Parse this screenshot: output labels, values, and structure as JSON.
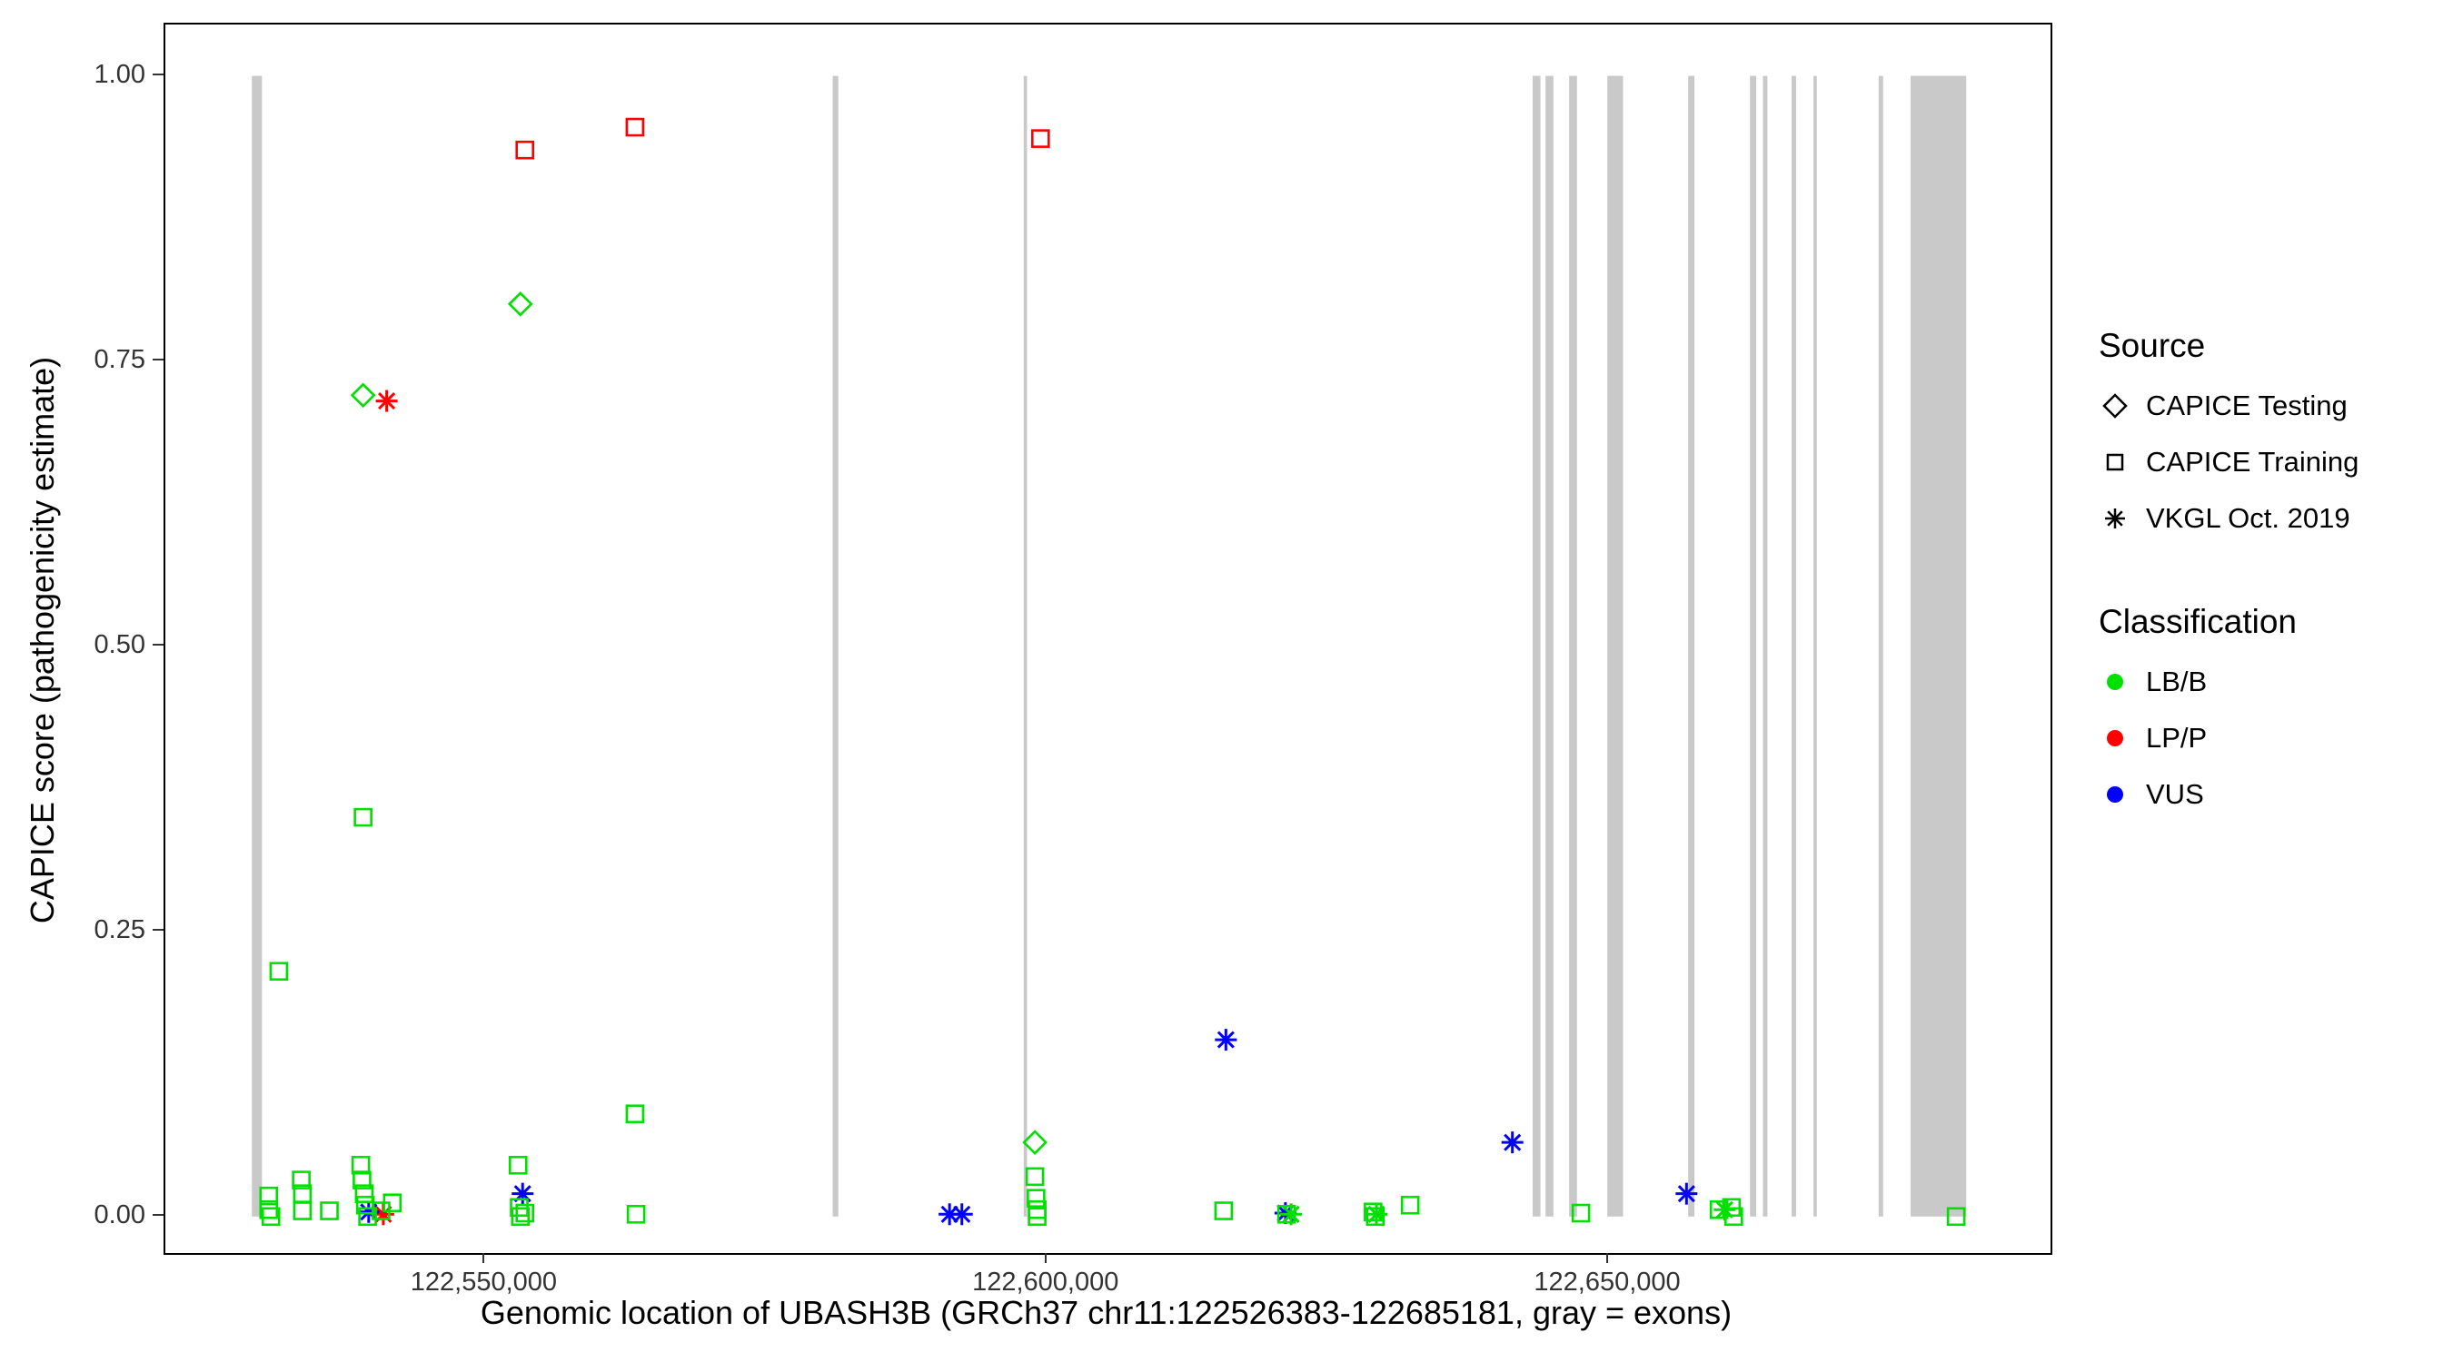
{
  "legend": {
    "source": {
      "title": "Source",
      "items": [
        {
          "label": "CAPICE Testing",
          "shape": "diamond"
        },
        {
          "label": "CAPICE Training",
          "shape": "square"
        },
        {
          "label": "VKGL Oct. 2019",
          "shape": "asterisk"
        }
      ]
    },
    "classification": {
      "title": "Classification",
      "items": [
        {
          "label": "LB/B",
          "color": "#00e000"
        },
        {
          "label": "LP/P",
          "color": "#ff0000"
        },
        {
          "label": "VUS",
          "color": "#0000ff"
        }
      ]
    }
  },
  "chart_data": {
    "type": "scatter",
    "title": "",
    "xlabel": "Genomic location of UBASH3B (GRCh37 chr11:122526383-122685181, gray = exons)",
    "ylabel": "CAPICE score (pathogenicity estimate)",
    "xlim": [
      122521500,
      122689300
    ],
    "ylim": [
      -0.032,
      1.045
    ],
    "grid": false,
    "legend_position": "right",
    "x_ticks": [
      {
        "value": 122550000,
        "label": "122,550,000"
      },
      {
        "value": 122600000,
        "label": "122,600,000"
      },
      {
        "value": 122650000,
        "label": "122,650,000"
      }
    ],
    "y_ticks": [
      {
        "value": 0.0,
        "label": "0.00"
      },
      {
        "value": 0.25,
        "label": "0.25"
      },
      {
        "value": 0.5,
        "label": "0.50"
      },
      {
        "value": 0.75,
        "label": "0.75"
      },
      {
        "value": 1.0,
        "label": "1.00"
      }
    ],
    "exon_color": "#c9c9c9",
    "exons": [
      [
        122529200,
        122530100
      ],
      [
        122580900,
        122581400
      ],
      [
        122597900,
        122598200
      ],
      [
        122643200,
        122643900
      ],
      [
        122644350,
        122645050
      ],
      [
        122646450,
        122647150
      ],
      [
        122649850,
        122651250
      ],
      [
        122657050,
        122657600
      ],
      [
        122662550,
        122663100
      ],
      [
        122663700,
        122664100
      ],
      [
        122666250,
        122666650
      ],
      [
        122668200,
        122668500
      ],
      [
        122674000,
        122674400
      ],
      [
        122676850,
        122681800
      ]
    ],
    "classification_colors": {
      "LB/B": "#00e000",
      "LP/P": "#ff0000",
      "VUS": "#0000ff"
    },
    "source_shapes": {
      "CAPICE Testing": "diamond",
      "CAPICE Training": "square",
      "VKGL Oct. 2019": "asterisk"
    },
    "points": [
      {
        "x": 122553500,
        "y": 0.935,
        "source": "CAPICE Training",
        "classification": "LP/P"
      },
      {
        "x": 122563300,
        "y": 0.955,
        "source": "CAPICE Training",
        "classification": "LP/P"
      },
      {
        "x": 122599400,
        "y": 0.945,
        "source": "CAPICE Training",
        "classification": "LP/P"
      },
      {
        "x": 122539100,
        "y": 0.72,
        "source": "CAPICE Testing",
        "classification": "LB/B"
      },
      {
        "x": 122553100,
        "y": 0.8,
        "source": "CAPICE Testing",
        "classification": "LB/B"
      },
      {
        "x": 122598900,
        "y": 0.065,
        "source": "CAPICE Testing",
        "classification": "LB/B"
      },
      {
        "x": 122541200,
        "y": 0.715,
        "source": "VKGL Oct. 2019",
        "classification": "LP/P"
      },
      {
        "x": 122540900,
        "y": 0.002,
        "source": "VKGL Oct. 2019",
        "classification": "LP/P"
      },
      {
        "x": 122539600,
        "y": 0.004,
        "source": "VKGL Oct. 2019",
        "classification": "VUS"
      },
      {
        "x": 122553300,
        "y": 0.02,
        "source": "VKGL Oct. 2019",
        "classification": "VUS"
      },
      {
        "x": 122591300,
        "y": 0.002,
        "source": "VKGL Oct. 2019",
        "classification": "VUS"
      },
      {
        "x": 122592400,
        "y": 0.002,
        "source": "VKGL Oct. 2019",
        "classification": "VUS"
      },
      {
        "x": 122615900,
        "y": 0.155,
        "source": "VKGL Oct. 2019",
        "classification": "VUS"
      },
      {
        "x": 122621200,
        "y": 0.003,
        "source": "VKGL Oct. 2019",
        "classification": "VUS"
      },
      {
        "x": 122641400,
        "y": 0.065,
        "source": "VKGL Oct. 2019",
        "classification": "VUS"
      },
      {
        "x": 122656900,
        "y": 0.02,
        "source": "VKGL Oct. 2019",
        "classification": "VUS"
      },
      {
        "x": 122621700,
        "y": 0.002,
        "source": "VKGL Oct. 2019",
        "classification": "LB/B"
      },
      {
        "x": 122629300,
        "y": 0.002,
        "source": "VKGL Oct. 2019",
        "classification": "LB/B"
      },
      {
        "x": 122660300,
        "y": 0.006,
        "source": "VKGL Oct. 2019",
        "classification": "LB/B"
      },
      {
        "x": 122531600,
        "y": 0.215,
        "source": "CAPICE Training",
        "classification": "LB/B"
      },
      {
        "x": 122539100,
        "y": 0.35,
        "source": "CAPICE Training",
        "classification": "LB/B"
      },
      {
        "x": 122530700,
        "y": 0.018,
        "source": "CAPICE Training",
        "classification": "LB/B"
      },
      {
        "x": 122530700,
        "y": 0.006,
        "source": "CAPICE Training",
        "classification": "LB/B"
      },
      {
        "x": 122530900,
        "y": 0.0,
        "source": "CAPICE Training",
        "classification": "LB/B"
      },
      {
        "x": 122533600,
        "y": 0.032,
        "source": "CAPICE Training",
        "classification": "LB/B"
      },
      {
        "x": 122533700,
        "y": 0.02,
        "source": "CAPICE Training",
        "classification": "LB/B"
      },
      {
        "x": 122533700,
        "y": 0.005,
        "source": "CAPICE Training",
        "classification": "LB/B"
      },
      {
        "x": 122536100,
        "y": 0.005,
        "source": "CAPICE Training",
        "classification": "LB/B"
      },
      {
        "x": 122538900,
        "y": 0.045,
        "source": "CAPICE Training",
        "classification": "LB/B"
      },
      {
        "x": 122539000,
        "y": 0.032,
        "source": "CAPICE Training",
        "classification": "LB/B"
      },
      {
        "x": 122539200,
        "y": 0.02,
        "source": "CAPICE Training",
        "classification": "LB/B"
      },
      {
        "x": 122539300,
        "y": 0.01,
        "source": "CAPICE Training",
        "classification": "LB/B"
      },
      {
        "x": 122539500,
        "y": 0.0,
        "source": "CAPICE Training",
        "classification": "LB/B"
      },
      {
        "x": 122540700,
        "y": 0.005,
        "source": "CAPICE Training",
        "classification": "LB/B"
      },
      {
        "x": 122541700,
        "y": 0.012,
        "source": "CAPICE Training",
        "classification": "LB/B"
      },
      {
        "x": 122552900,
        "y": 0.045,
        "source": "CAPICE Training",
        "classification": "LB/B"
      },
      {
        "x": 122553000,
        "y": 0.008,
        "source": "CAPICE Training",
        "classification": "LB/B"
      },
      {
        "x": 122553100,
        "y": 0.0,
        "source": "CAPICE Training",
        "classification": "LB/B"
      },
      {
        "x": 122553500,
        "y": 0.003,
        "source": "CAPICE Training",
        "classification": "LB/B"
      },
      {
        "x": 122563300,
        "y": 0.09,
        "source": "CAPICE Training",
        "classification": "LB/B"
      },
      {
        "x": 122563400,
        "y": 0.002,
        "source": "CAPICE Training",
        "classification": "LB/B"
      },
      {
        "x": 122598900,
        "y": 0.035,
        "source": "CAPICE Training",
        "classification": "LB/B"
      },
      {
        "x": 122599000,
        "y": 0.016,
        "source": "CAPICE Training",
        "classification": "LB/B"
      },
      {
        "x": 122599100,
        "y": 0.006,
        "source": "CAPICE Training",
        "classification": "LB/B"
      },
      {
        "x": 122599100,
        "y": 0.0,
        "source": "CAPICE Training",
        "classification": "LB/B"
      },
      {
        "x": 122615700,
        "y": 0.005,
        "source": "CAPICE Training",
        "classification": "LB/B"
      },
      {
        "x": 122621300,
        "y": 0.002,
        "source": "CAPICE Training",
        "classification": "LB/B"
      },
      {
        "x": 122629000,
        "y": 0.004,
        "source": "CAPICE Training",
        "classification": "LB/B"
      },
      {
        "x": 122629200,
        "y": 0.0,
        "source": "CAPICE Training",
        "classification": "LB/B"
      },
      {
        "x": 122632300,
        "y": 0.01,
        "source": "CAPICE Training",
        "classification": "LB/B"
      },
      {
        "x": 122647500,
        "y": 0.003,
        "source": "CAPICE Training",
        "classification": "LB/B"
      },
      {
        "x": 122659800,
        "y": 0.006,
        "source": "CAPICE Training",
        "classification": "LB/B"
      },
      {
        "x": 122660900,
        "y": 0.008,
        "source": "CAPICE Training",
        "classification": "LB/B"
      },
      {
        "x": 122661100,
        "y": 0.0,
        "source": "CAPICE Training",
        "classification": "LB/B"
      },
      {
        "x": 122680900,
        "y": 0.0,
        "source": "CAPICE Training",
        "classification": "LB/B"
      }
    ]
  }
}
